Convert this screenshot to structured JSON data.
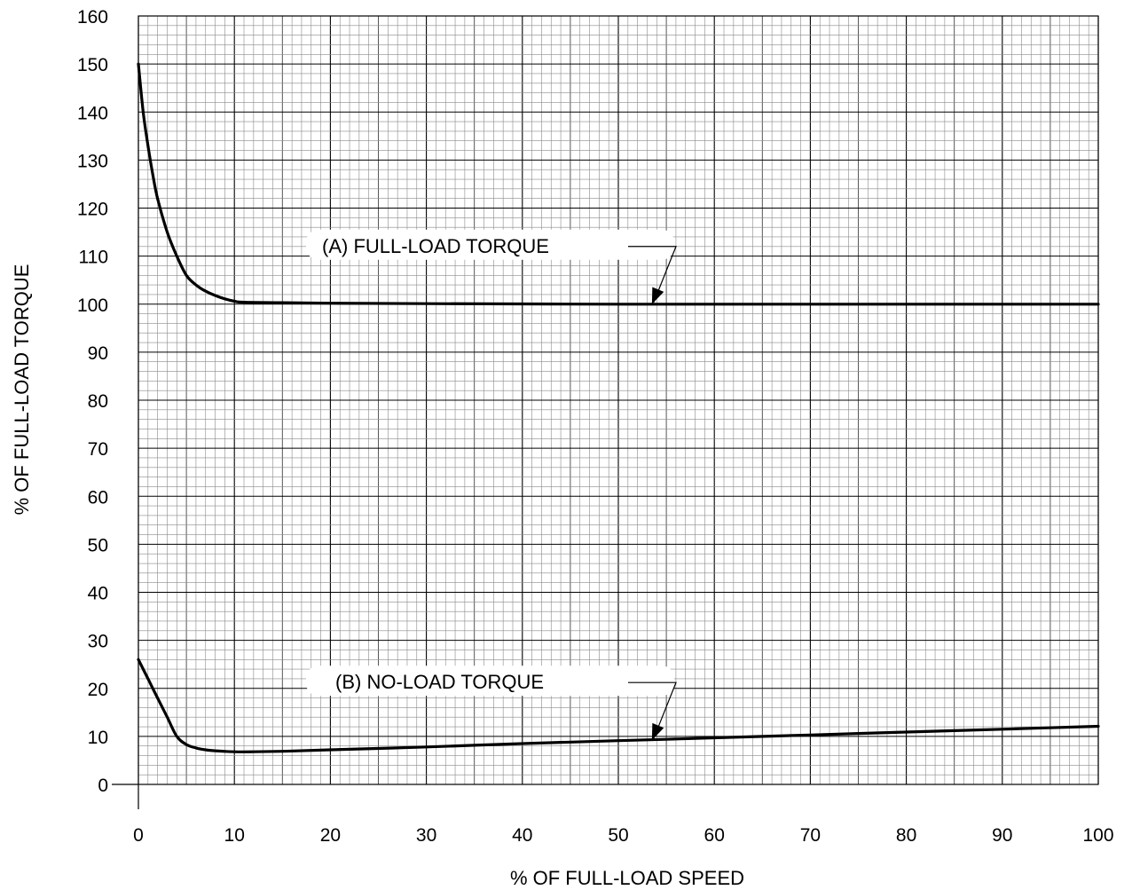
{
  "chart_data": {
    "type": "line",
    "xlabel": "% OF FULL-LOAD SPEED",
    "ylabel": "% OF FULL-LOAD TORQUE",
    "xlim": [
      0,
      100
    ],
    "ylim": [
      0,
      160
    ],
    "xticks": [
      0,
      10,
      20,
      30,
      40,
      50,
      60,
      70,
      80,
      90,
      100
    ],
    "yticks": [
      0,
      10,
      20,
      30,
      40,
      50,
      60,
      70,
      80,
      90,
      100,
      110,
      120,
      130,
      140,
      150,
      160
    ],
    "grid": true,
    "series": [
      {
        "name": "(A) FULL-LOAD TORQUE",
        "x": [
          0,
          0.5,
          1,
          1.5,
          2,
          3,
          4,
          5,
          6,
          7,
          8,
          9,
          10,
          11,
          15,
          20,
          30,
          50,
          70,
          100
        ],
        "y": [
          150,
          140,
          133,
          127,
          122,
          115,
          110,
          106,
          104,
          102.7,
          101.8,
          101.1,
          100.6,
          100.4,
          100.3,
          100.2,
          100.1,
          100,
          100,
          100
        ]
      },
      {
        "name": "(B) NO-LOAD TORQUE",
        "x": [
          0,
          0.5,
          1,
          1.5,
          2,
          3,
          4,
          5,
          6,
          7,
          8,
          10,
          12,
          15,
          20,
          30,
          40,
          50,
          60,
          70,
          80,
          90,
          100
        ],
        "y": [
          26,
          24,
          22,
          20,
          18,
          14,
          10,
          8.3,
          7.6,
          7.2,
          7,
          6.8,
          6.8,
          6.9,
          7.2,
          7.8,
          8.5,
          9.1,
          9.7,
          10.3,
          10.9,
          11.5,
          12.1
        ]
      }
    ],
    "annotations": [
      {
        "text": "(A) FULL-LOAD TORQUE",
        "series": 0,
        "pointer_x": 53.5,
        "pointer_y": 100
      },
      {
        "text": "(B) NO-LOAD TORQUE",
        "series": 1,
        "pointer_x": 53.5,
        "pointer_y": 9.2
      }
    ]
  }
}
